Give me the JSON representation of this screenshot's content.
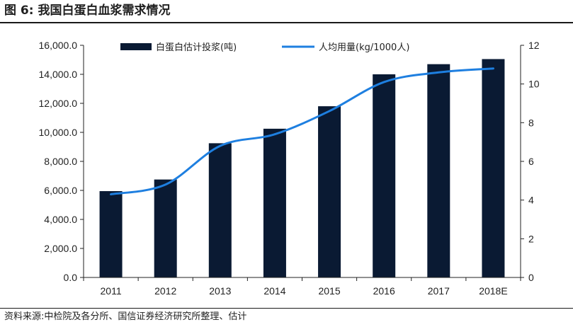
{
  "figure": {
    "number": "图 6:",
    "title": "我国白蛋白血浆需求情况",
    "source": "资料来源:中检院及各分所、国信证券经济研究所整理、估计"
  },
  "colors": {
    "bar": "#0a1a33",
    "line": "#1e7fe0"
  },
  "chart_data": {
    "type": "bar",
    "categories": [
      "2011",
      "2012",
      "2013",
      "2014",
      "2015",
      "2016",
      "2017",
      "2018E"
    ],
    "series": [
      {
        "name": "白蛋白估计投浆(吨)",
        "type": "bar",
        "axis": "left",
        "values": [
          5950,
          6750,
          9250,
          10250,
          11800,
          14000,
          14700,
          15050
        ]
      },
      {
        "name": "人均用量(kg/1000人)",
        "type": "line",
        "axis": "right",
        "smooth": true,
        "values": [
          4.3,
          4.8,
          6.8,
          7.4,
          8.6,
          10.1,
          10.6,
          10.8
        ]
      }
    ],
    "y_left": {
      "min": 0,
      "max": 16000,
      "ticks": [
        "0.0",
        "2,000.0",
        "4,000.0",
        "6,000.0",
        "8,000.0",
        "10,000.0",
        "12,000.0",
        "14,000.0",
        "16,000.0"
      ]
    },
    "y_right": {
      "min": 0,
      "max": 12,
      "ticks": [
        "0",
        "2",
        "4",
        "6",
        "8",
        "10",
        "12"
      ]
    },
    "grid": false,
    "legend": "top"
  }
}
